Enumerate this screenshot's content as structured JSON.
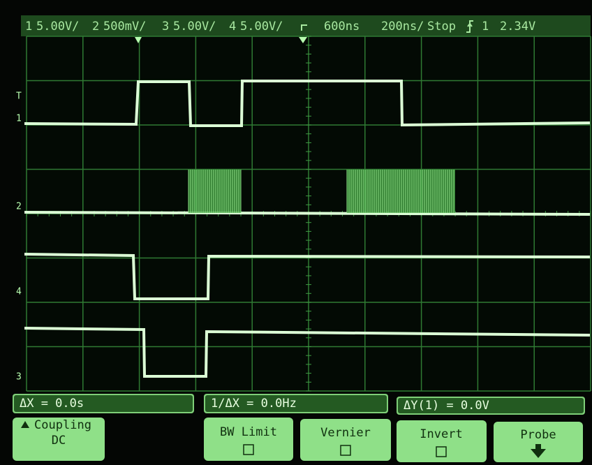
{
  "status_bar": {
    "ch1": "1",
    "ch1_scale": "5.00V/",
    "ch2": "2",
    "ch2_scale": "500mV/",
    "ch3": "3",
    "ch3_scale": "5.00V/",
    "ch4": "4",
    "ch4_scale": "5.00V/",
    "delay": "600ns",
    "time_scale": "200ns/",
    "run_state": "Stop",
    "trigger_source": "1",
    "trigger_level": "2.34V"
  },
  "channel_markers": [
    "T",
    "1",
    "2",
    "4",
    "3"
  ],
  "measurements": [
    "ΔX = 0.0s",
    "1/ΔX = 0.0Hz",
    "ΔY(1) = 0.0V"
  ],
  "softkeys": [
    {
      "label": "Coupling",
      "value": "DC"
    },
    {
      "label": "BW Limit"
    },
    {
      "label": "Vernier"
    },
    {
      "label": "Invert"
    },
    {
      "label": "Probe"
    }
  ]
}
